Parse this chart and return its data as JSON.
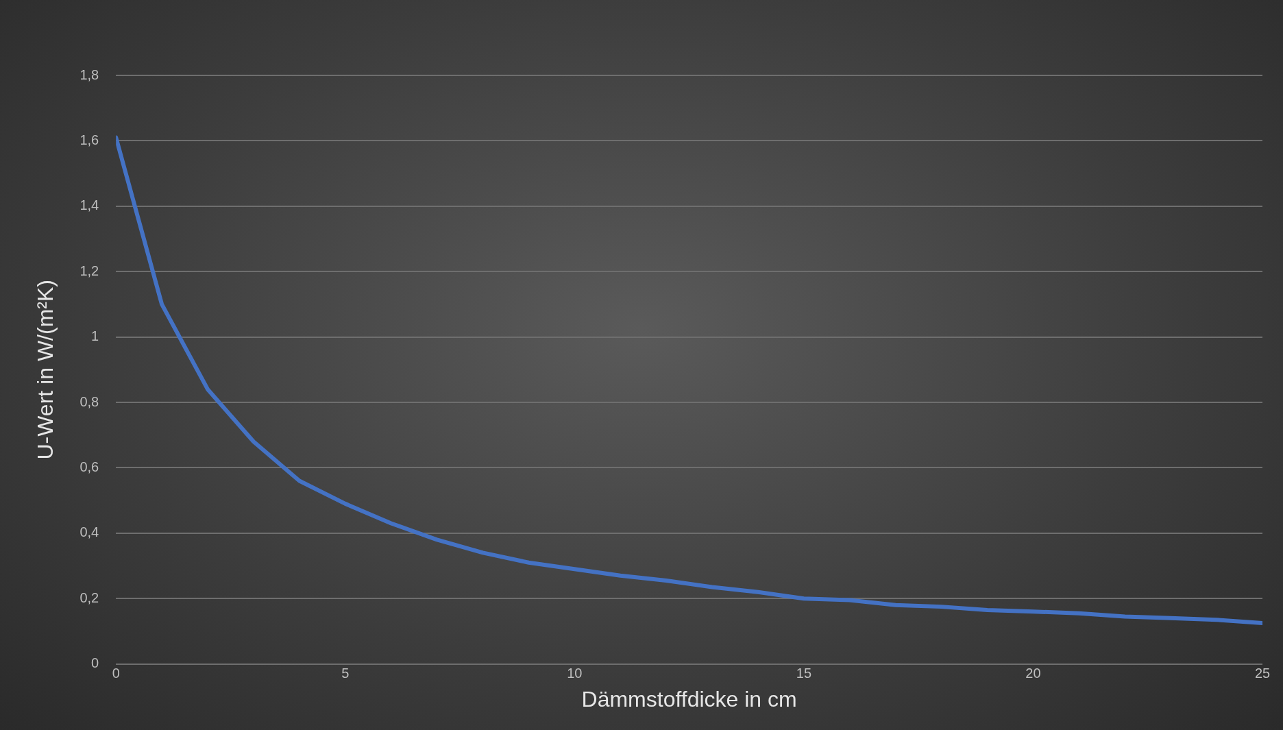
{
  "chart_data": {
    "type": "line",
    "xlabel": "Dämmstoffdicke in cm",
    "ylabel": "U-Wert in W/(m²K)",
    "x": [
      0,
      1,
      2,
      3,
      4,
      5,
      6,
      7,
      8,
      9,
      10,
      11,
      12,
      13,
      14,
      15,
      16,
      17,
      18,
      19,
      20,
      21,
      22,
      23,
      24,
      25
    ],
    "series": [
      {
        "color": "#4472c4",
        "values": [
          1.61,
          1.1,
          0.84,
          0.68,
          0.56,
          0.49,
          0.43,
          0.38,
          0.34,
          0.31,
          0.29,
          0.27,
          0.255,
          0.235,
          0.22,
          0.2,
          0.195,
          0.18,
          0.175,
          0.165,
          0.16,
          0.155,
          0.145,
          0.14,
          0.135,
          0.125
        ]
      }
    ],
    "xlim": [
      0,
      25
    ],
    "xticks": [
      0,
      5,
      10,
      15,
      20,
      25
    ],
    "ylim": [
      0,
      1.8
    ],
    "yticks": [
      0,
      {
        "value": 0.2,
        "label": "0,2"
      },
      {
        "value": 0.4,
        "label": "0,4"
      },
      {
        "value": 0.6,
        "label": "0,6"
      },
      {
        "value": 0.8,
        "label": "0,8"
      },
      1,
      {
        "value": 1.2,
        "label": "1,2"
      },
      {
        "value": 1.4,
        "label": "1,4"
      },
      {
        "value": 1.6,
        "label": "1,6"
      },
      {
        "value": 1.8,
        "label": "1,8"
      }
    ],
    "grid": "y",
    "legend": false,
    "marker": "none",
    "line_style": "solid"
  }
}
